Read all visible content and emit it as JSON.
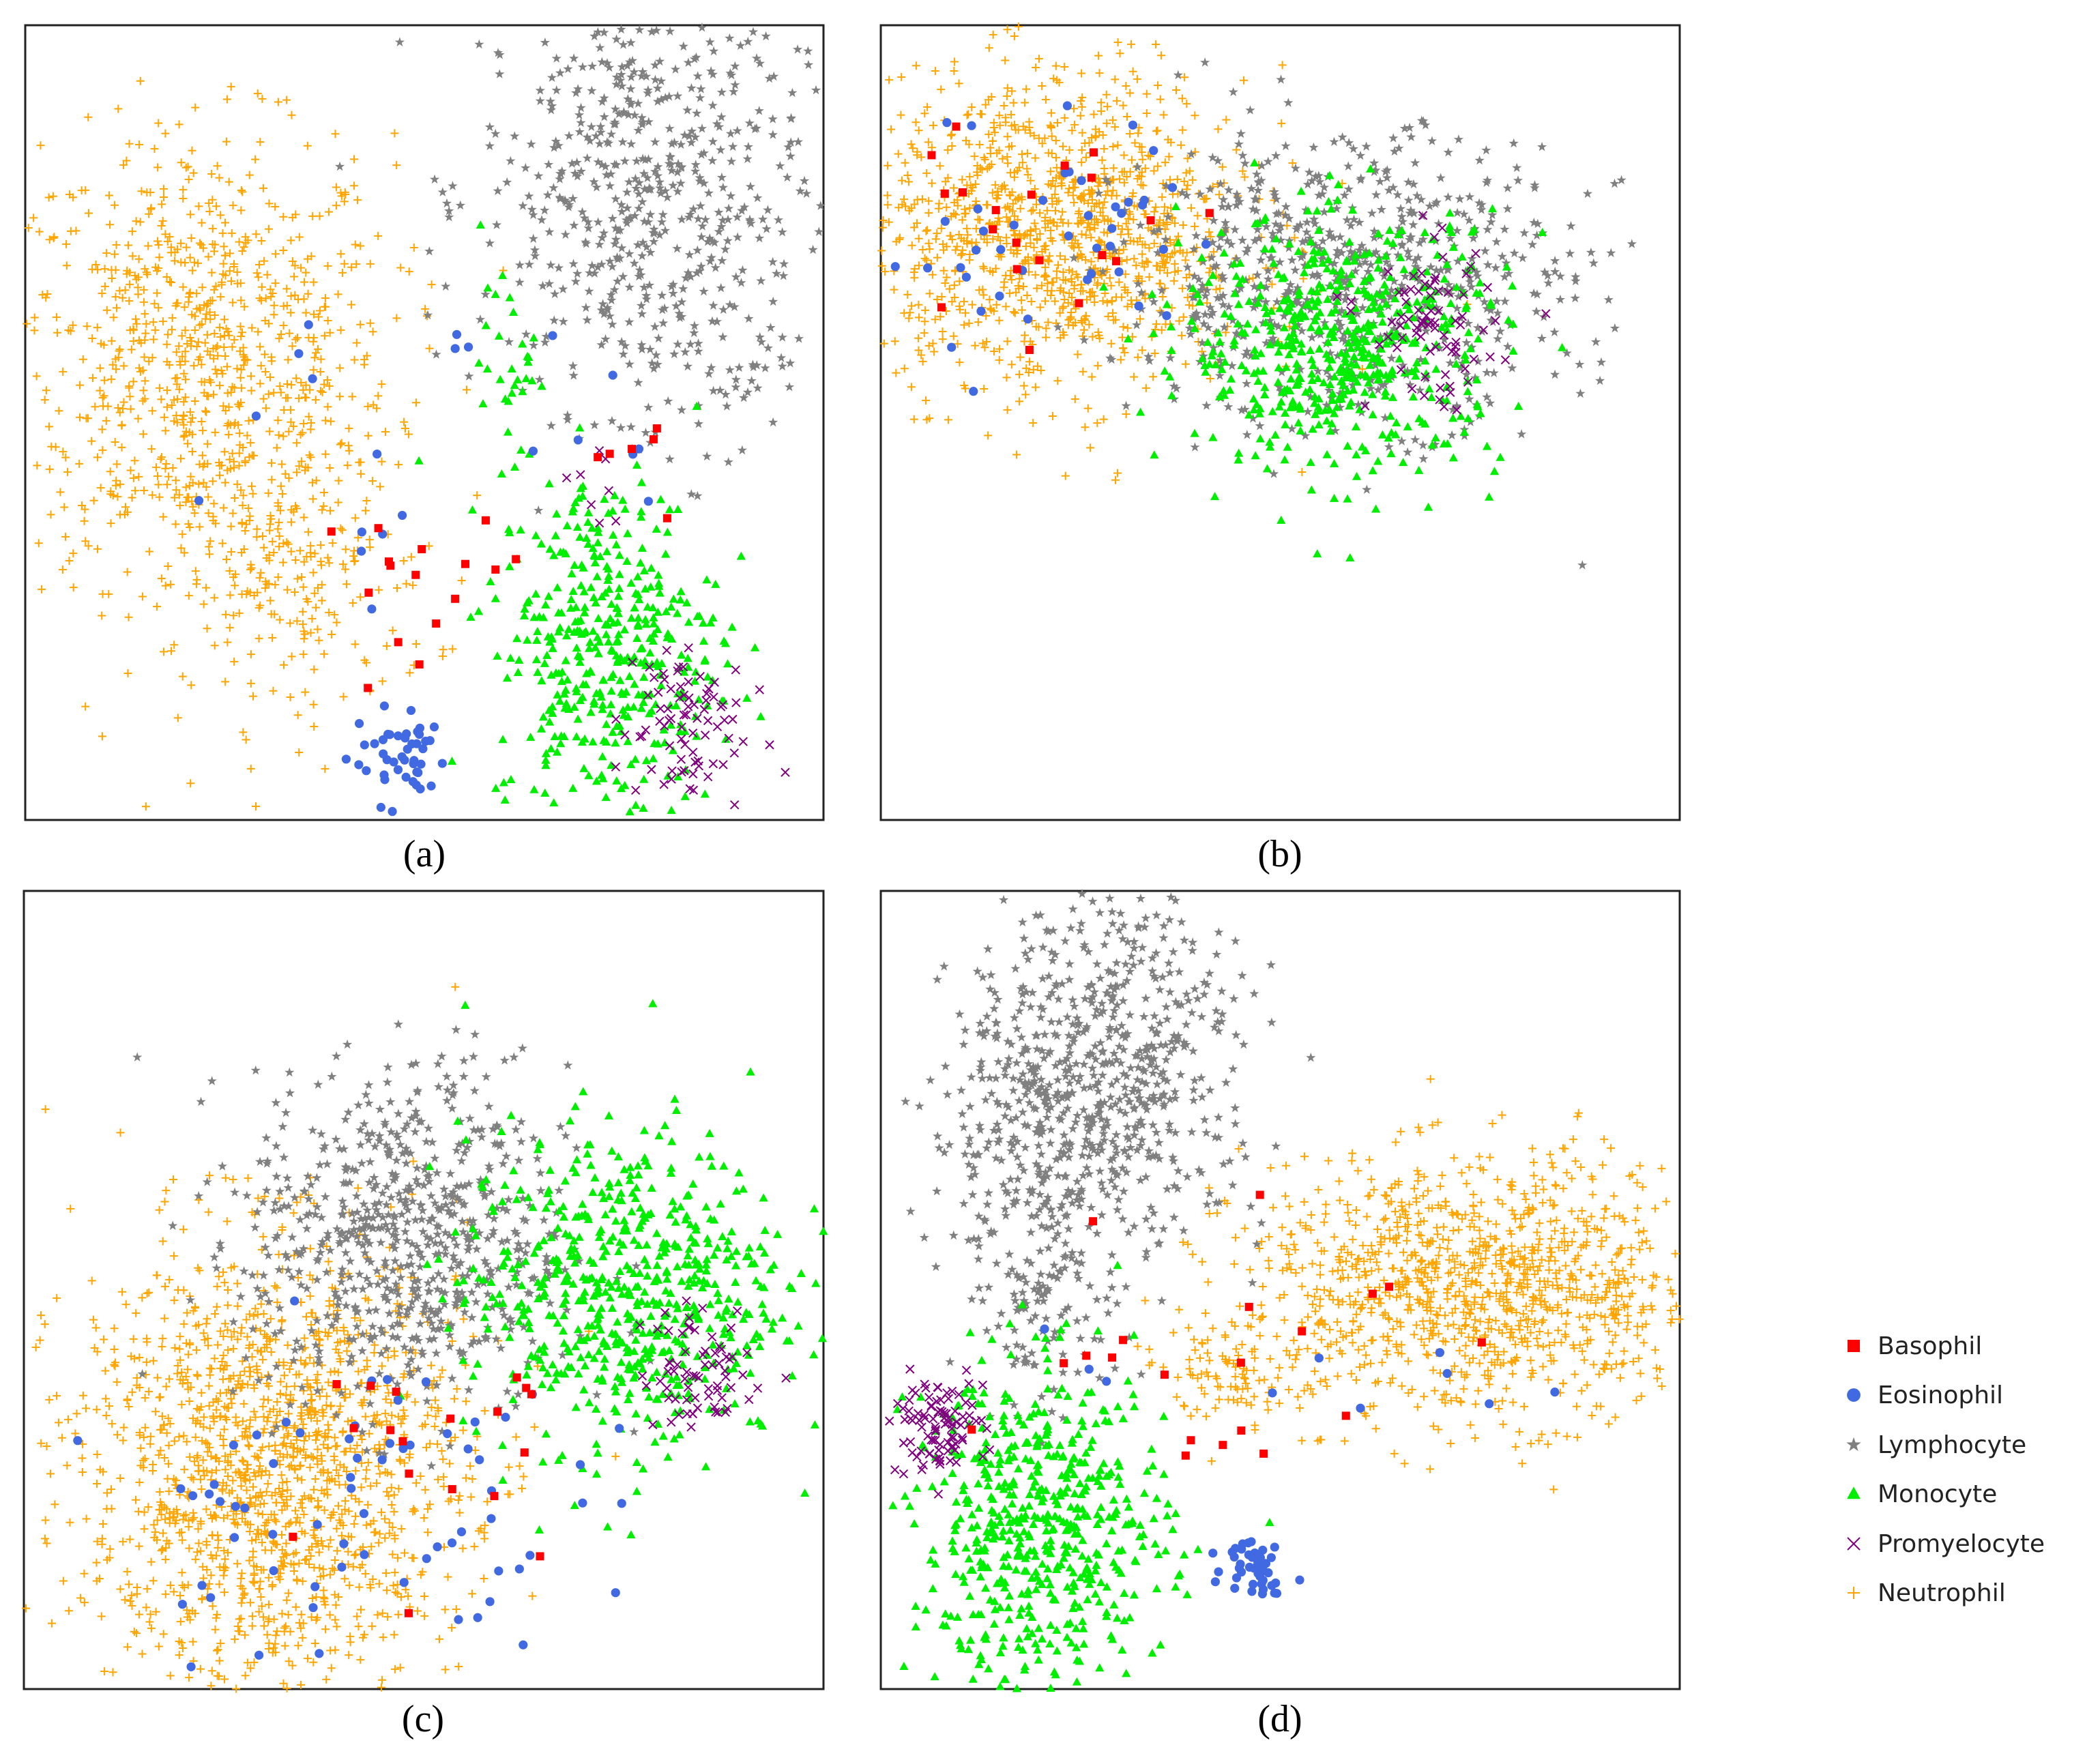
{
  "figure": {
    "panels": [
      "(a)",
      "(b)",
      "(c)",
      "(d)"
    ]
  },
  "chart_data": [
    {
      "type": "scatter",
      "title": "(a)",
      "xlabel": "",
      "ylabel": "",
      "xlim": [
        0,
        100
      ],
      "ylim": [
        0,
        100
      ],
      "grid": false,
      "legend_placement": "right",
      "series": [
        {
          "name": "Basophil",
          "clusters": [
            {
              "cx": 48,
              "cy": 24,
              "sx": 9,
              "sy": 7,
              "n": 16
            },
            {
              "cx": 80,
              "cy": 45,
              "sx": 5,
              "sy": 7,
              "n": 6
            }
          ]
        },
        {
          "name": "Eosinophil",
          "clusters": [
            {
              "cx": 47,
              "cy": 8,
              "sx": 3,
              "sy": 3,
              "n": 45
            },
            {
              "cx": 35,
              "cy": 52,
              "sx": 12,
              "sy": 14,
              "n": 14
            },
            {
              "cx": 67,
              "cy": 55,
              "sx": 7,
              "sy": 9,
              "n": 8
            }
          ]
        },
        {
          "name": "Lymphocyte",
          "clusters": [
            {
              "cx": 77,
              "cy": 80,
              "sx": 10,
              "sy": 14,
              "n": 560
            },
            {
              "cx": 86,
              "cy": 60,
              "sx": 5,
              "sy": 8,
              "n": 60
            }
          ]
        },
        {
          "name": "Monocyte",
          "clusters": [
            {
              "cx": 73,
              "cy": 22,
              "sx": 7,
              "sy": 11,
              "n": 420
            },
            {
              "cx": 61,
              "cy": 57,
              "sx": 2,
              "sy": 5,
              "n": 30
            }
          ]
        },
        {
          "name": "Promyelocyte",
          "clusters": [
            {
              "cx": 82,
              "cy": 12,
              "sx": 4,
              "sy": 6,
              "n": 85
            },
            {
              "cx": 72,
              "cy": 42,
              "sx": 3,
              "sy": 4,
              "n": 8
            }
          ]
        },
        {
          "name": "Neutrophil",
          "clusters": [
            {
              "cx": 22,
              "cy": 58,
              "sx": 12,
              "sy": 14,
              "n": 850
            },
            {
              "cx": 33,
              "cy": 30,
              "sx": 9,
              "sy": 9,
              "n": 220
            }
          ]
        }
      ]
    },
    {
      "type": "scatter",
      "title": "(b)",
      "xlabel": "",
      "ylabel": "",
      "xlim": [
        0,
        100
      ],
      "ylim": [
        0,
        100
      ],
      "grid": false,
      "legend_placement": "right",
      "series": [
        {
          "name": "Basophil",
          "clusters": [
            {
              "cx": 20,
              "cy": 75,
              "sx": 10,
              "sy": 7,
              "n": 22
            }
          ]
        },
        {
          "name": "Eosinophil",
          "clusters": [
            {
              "cx": 22,
              "cy": 72,
              "sx": 12,
              "sy": 9,
              "n": 45
            }
          ]
        },
        {
          "name": "Lymphocyte",
          "clusters": [
            {
              "cx": 58,
              "cy": 68,
              "sx": 14,
              "sy": 9,
              "n": 700
            },
            {
              "cx": 91,
              "cy": 30,
              "sx": 6,
              "sy": 20,
              "n": 5
            }
          ]
        },
        {
          "name": "Monocyte",
          "clusters": [
            {
              "cx": 58,
              "cy": 60,
              "sx": 10,
              "sy": 8,
              "n": 550
            }
          ]
        },
        {
          "name": "Promyelocyte",
          "clusters": [
            {
              "cx": 69,
              "cy": 62,
              "sx": 4,
              "sy": 5,
              "n": 80
            }
          ]
        },
        {
          "name": "Neutrophil",
          "clusters": [
            {
              "cx": 22,
              "cy": 74,
              "sx": 12,
              "sy": 10,
              "n": 1150
            }
          ]
        }
      ]
    },
    {
      "type": "scatter",
      "title": "(c)",
      "xlabel": "",
      "ylabel": "",
      "xlim": [
        0,
        100
      ],
      "ylim": [
        0,
        100
      ],
      "grid": false,
      "legend_placement": "right",
      "series": [
        {
          "name": "Basophil",
          "clusters": [
            {
              "cx": 48,
              "cy": 32,
              "sx": 10,
              "sy": 12,
              "n": 18
            }
          ]
        },
        {
          "name": "Eosinophil",
          "clusters": [
            {
              "cx": 40,
              "cy": 24,
              "sx": 14,
              "sy": 10,
              "n": 70
            }
          ]
        },
        {
          "name": "Lymphocyte",
          "clusters": [
            {
              "cx": 48,
              "cy": 56,
              "sx": 10,
              "sy": 11,
              "n": 700
            }
          ]
        },
        {
          "name": "Monocyte",
          "clusters": [
            {
              "cx": 75,
              "cy": 50,
              "sx": 10,
              "sy": 10,
              "n": 620
            }
          ]
        },
        {
          "name": "Promyelocyte",
          "clusters": [
            {
              "cx": 85,
              "cy": 40,
              "sx": 4,
              "sy": 4,
              "n": 70
            }
          ]
        },
        {
          "name": "Neutrophil",
          "clusters": [
            {
              "cx": 31,
              "cy": 28,
              "sx": 12,
              "sy": 14,
              "n": 1500
            }
          ]
        }
      ]
    },
    {
      "type": "scatter",
      "title": "(d)",
      "xlabel": "",
      "ylabel": "",
      "xlim": [
        0,
        100
      ],
      "ylim": [
        0,
        100
      ],
      "grid": false,
      "legend_placement": "right",
      "series": [
        {
          "name": "Basophil",
          "clusters": [
            {
              "cx": 38,
              "cy": 46,
              "sx": 15,
              "sy": 10,
              "n": 20
            }
          ]
        },
        {
          "name": "Eosinophil",
          "clusters": [
            {
              "cx": 47,
              "cy": 16,
              "sx": 2,
              "sy": 2,
              "n": 45
            },
            {
              "cx": 45,
              "cy": 38,
              "sx": 15,
              "sy": 8,
              "n": 10
            }
          ]
        },
        {
          "name": "Lymphocyte",
          "clusters": [
            {
              "cx": 20,
              "cy": 70,
              "sx": 7,
              "sy": 12,
              "n": 400
            },
            {
              "cx": 32,
              "cy": 80,
              "sx": 8,
              "sy": 12,
              "n": 400
            },
            {
              "cx": 20,
              "cy": 48,
              "sx": 3,
              "sy": 7,
              "n": 80
            }
          ]
        },
        {
          "name": "Monocyte",
          "clusters": [
            {
              "cx": 20,
              "cy": 20,
              "sx": 8,
              "sy": 10,
              "n": 560
            }
          ]
        },
        {
          "name": "Promyelocyte",
          "clusters": [
            {
              "cx": 7,
              "cy": 33,
              "sx": 3,
              "sy": 3,
              "n": 100
            }
          ]
        },
        {
          "name": "Neutrophil",
          "clusters": [
            {
              "cx": 75,
              "cy": 50,
              "sx": 15,
              "sy": 8,
              "n": 1150
            },
            {
              "cx": 44,
              "cy": 40,
              "sx": 4,
              "sy": 3,
              "n": 80
            }
          ]
        }
      ]
    }
  ],
  "legend": {
    "items": [
      {
        "label": "Basophil",
        "marker": "square",
        "color": "#ff0000"
      },
      {
        "label": "Eosinophil",
        "marker": "circle",
        "color": "#4169e1"
      },
      {
        "label": "Lymphocyte",
        "marker": "star",
        "color": "#808080"
      },
      {
        "label": "Monocyte",
        "marker": "triangle",
        "color": "#00ee00"
      },
      {
        "label": "Promyelocyte",
        "marker": "x",
        "color": "#800080"
      },
      {
        "label": "Neutrophil",
        "marker": "plus",
        "color": "#ffa500"
      }
    ]
  }
}
